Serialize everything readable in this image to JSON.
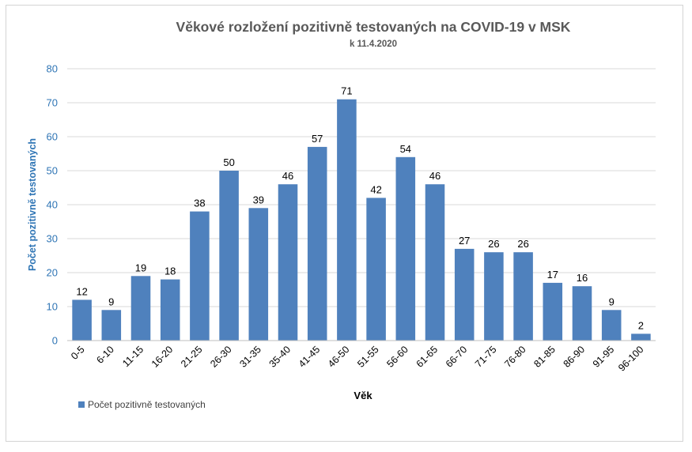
{
  "chart_data": {
    "type": "bar",
    "title": "Věkové rozložení pozitivně testovaných na COVID-19 v MSK",
    "subtitle": "k 11.4.2020",
    "xlabel": "Věk",
    "ylabel": "Počet pozitivně testovaných",
    "ylim": [
      0,
      80
    ],
    "yticks": [
      0,
      10,
      20,
      30,
      40,
      50,
      60,
      70,
      80
    ],
    "grid": true,
    "legend_position": "bottom-left",
    "bar_color": "#4f81bd",
    "categories": [
      "0-5",
      "6-10",
      "11-15",
      "16-20",
      "21-25",
      "26-30",
      "31-35",
      "35-40",
      "41-45",
      "46-50",
      "51-55",
      "56-60",
      "61-65",
      "66-70",
      "71-75",
      "76-80",
      "81-85",
      "86-90",
      "91-95",
      "96-100"
    ],
    "series": [
      {
        "name": "Počet pozitivně testovaných",
        "values": [
          12,
          9,
          19,
          18,
          38,
          50,
          39,
          46,
          57,
          71,
          42,
          54,
          46,
          27,
          26,
          26,
          17,
          16,
          9,
          2
        ]
      }
    ]
  }
}
